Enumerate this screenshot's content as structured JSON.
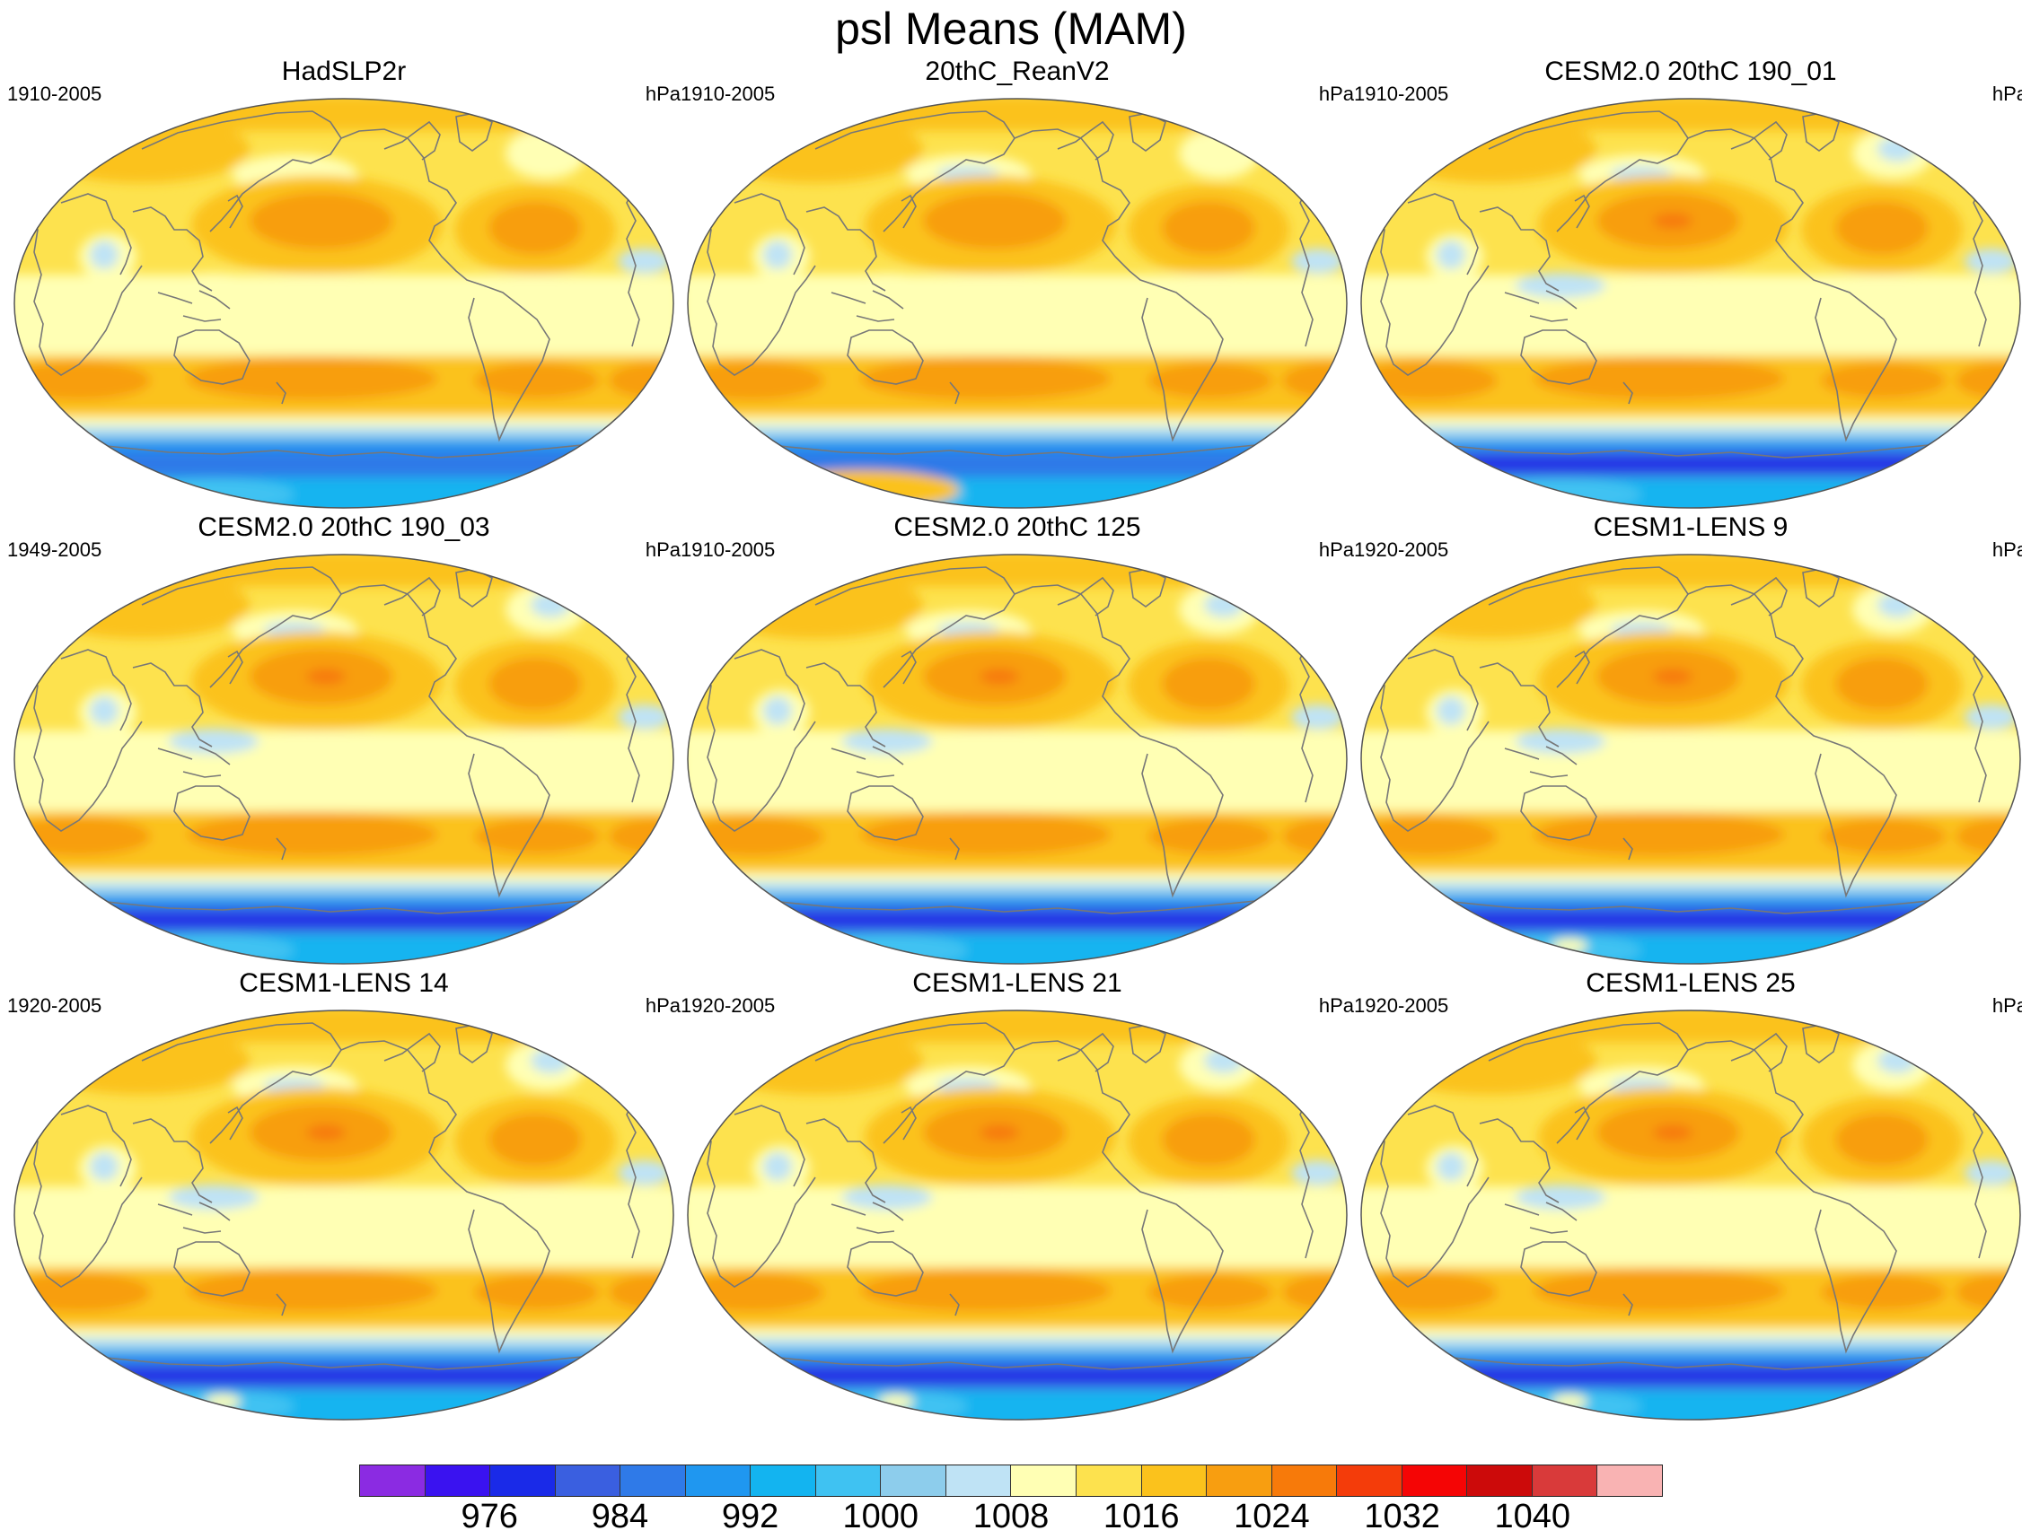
{
  "figure": {
    "title": "psl Means (MAM)"
  },
  "panels": [
    {
      "title": "HadSLP2r",
      "period": "1910-2005",
      "units": "hPa",
      "variant": 0
    },
    {
      "title": "20thC_ReanV2",
      "period": "1910-2005",
      "units": "hPa",
      "variant": 1
    },
    {
      "title": "CESM2.0 20thC 190_01",
      "period": "1910-2005",
      "units": "hPa",
      "variant": 2
    },
    {
      "title": "CESM2.0 20thC 190_03",
      "period": "1949-2005",
      "units": "hPa",
      "variant": 2
    },
    {
      "title": "CESM2.0 20thC 125",
      "period": "1910-2005",
      "units": "hPa",
      "variant": 2
    },
    {
      "title": "CESM1-LENS 9",
      "period": "1920-2005",
      "units": "hPa",
      "variant": 3
    },
    {
      "title": "CESM1-LENS 14",
      "period": "1920-2005",
      "units": "hPa",
      "variant": 3
    },
    {
      "title": "CESM1-LENS 21",
      "period": "1920-2005",
      "units": "hPa",
      "variant": 3
    },
    {
      "title": "CESM1-LENS 25",
      "period": "1920-2005",
      "units": "hPa",
      "variant": 3
    }
  ],
  "colorbar": {
    "colors": [
      "#8b2be2",
      "#3a12f0",
      "#1a2ae8",
      "#3a5fe0",
      "#2f7ae8",
      "#1f97f0",
      "#13b4f0",
      "#3fc2f2",
      "#8dcdec",
      "#bfe3f5",
      "#ffffb4",
      "#fde24e",
      "#fbc21c",
      "#f89e10",
      "#f77a0a",
      "#f43c0a",
      "#f50505",
      "#cc0a0a",
      "#d93a3a",
      "#f9b3b3"
    ],
    "labels": [
      "976",
      "984",
      "992",
      "1000",
      "1008",
      "1016",
      "1024",
      "1032",
      "1040"
    ],
    "label_boundary_index": [
      2,
      4,
      6,
      8,
      10,
      12,
      14,
      16,
      18
    ]
  },
  "coastline_color": "#777777",
  "outline_color": "#555555"
}
